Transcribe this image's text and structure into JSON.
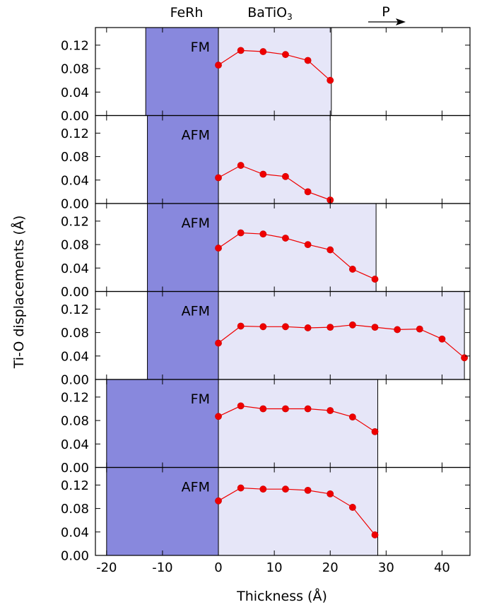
{
  "header": {
    "left_label": "FeRh",
    "right_label": "BaTiO",
    "right_label_sub": "3",
    "arrow_label": "P"
  },
  "chart_data": {
    "type": "scatter",
    "xlabel": "Thickness (Å)",
    "ylabel": "Ti-O displacements (Å)",
    "xlim": [
      -22,
      45
    ],
    "ylim": [
      0,
      0.15
    ],
    "x_ticks": [
      "-20",
      "-10",
      "0",
      "10",
      "20",
      "30",
      "40"
    ],
    "x_tick_values": [
      -20,
      -10,
      0,
      10,
      20,
      30,
      40
    ],
    "y_ticks": [
      "0.00",
      "0.04",
      "0.08",
      "0.12"
    ],
    "y_tick_values": [
      0,
      0.04,
      0.08,
      0.12
    ],
    "colors": {
      "ferh_region": "#8888dd",
      "bto_region": "#e6e6f8",
      "series": "#ee0000",
      "axis": "#000000"
    },
    "panels": [
      {
        "label": "FM",
        "ferh_range": [
          -13,
          0
        ],
        "bto_range": [
          0,
          20.2
        ],
        "x": [
          0,
          4,
          8,
          12,
          16,
          20
        ],
        "y": [
          0.086,
          0.111,
          0.109,
          0.104,
          0.094,
          0.06
        ]
      },
      {
        "label": "AFM",
        "ferh_range": [
          -12.7,
          0
        ],
        "bto_range": [
          0,
          20
        ],
        "x": [
          0,
          4,
          8,
          12,
          16,
          20
        ],
        "y": [
          0.044,
          0.065,
          0.05,
          0.046,
          0.02,
          0.006
        ]
      },
      {
        "label": "AFM",
        "ferh_range": [
          -12.7,
          0
        ],
        "bto_range": [
          0,
          28.2
        ],
        "x": [
          0,
          4,
          8,
          12,
          16,
          20,
          24,
          28
        ],
        "y": [
          0.074,
          0.1,
          0.098,
          0.091,
          0.08,
          0.071,
          0.038,
          0.021
        ]
      },
      {
        "label": "AFM",
        "ferh_range": [
          -12.7,
          0
        ],
        "bto_range": [
          0,
          44
        ],
        "x": [
          0,
          4,
          8,
          12,
          16,
          20,
          24,
          28,
          32,
          36,
          40,
          44
        ],
        "y": [
          0.062,
          0.091,
          0.09,
          0.09,
          0.088,
          0.089,
          0.093,
          0.089,
          0.085,
          0.086,
          0.069,
          0.037
        ]
      },
      {
        "label": "FM",
        "ferh_range": [
          -20,
          0
        ],
        "bto_range": [
          0,
          28.5
        ],
        "x": [
          0,
          4,
          8,
          12,
          16,
          20,
          24,
          28
        ],
        "y": [
          0.087,
          0.105,
          0.1,
          0.1,
          0.1,
          0.097,
          0.086,
          0.061
        ]
      },
      {
        "label": "AFM",
        "ferh_range": [
          -20,
          0
        ],
        "bto_range": [
          0,
          28.5
        ],
        "x": [
          0,
          4,
          8,
          12,
          16,
          20,
          24,
          28
        ],
        "y": [
          0.093,
          0.115,
          0.113,
          0.113,
          0.111,
          0.105,
          0.082,
          0.035
        ]
      }
    ]
  }
}
